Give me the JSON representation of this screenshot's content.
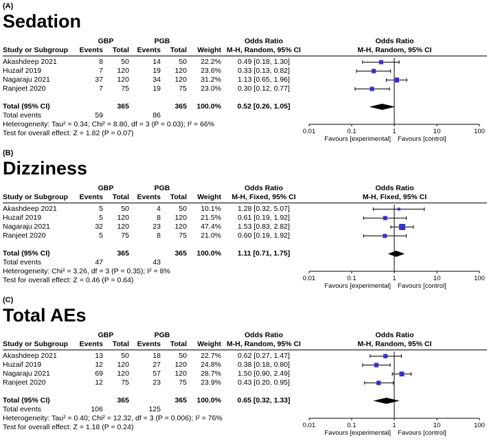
{
  "figure": {
    "shared": {
      "group1": "GBP",
      "group2": "PGB",
      "col_study": "Study or Subgroup",
      "col_events": "Events",
      "col_total": "Total",
      "col_weight": "Weight",
      "or_header": "Odds Ratio",
      "axis_ticks": [
        "0.01",
        "0.1",
        "1",
        "10",
        "100"
      ],
      "favours_left": "Favours [experimental]",
      "favours_right": "Favours [control]"
    },
    "colors": {
      "marker": "#3333cc",
      "diamond": "#000000",
      "line": "#000000"
    },
    "panels": [
      {
        "label": "(A)",
        "title": "Sedation",
        "effect_header": "M-H, Random, 95% CI",
        "rows": [
          {
            "study": "Akashdeep 2021",
            "gbp_events": "8",
            "gbp_total": "50",
            "pgb_events": "14",
            "pgb_total": "50",
            "weight": "22.2%",
            "ci_text": "0.49 [0.18, 1.30]",
            "or": 0.49,
            "low": 0.18,
            "high": 1.3,
            "weight_pct": 22.2
          },
          {
            "study": "Huzaif 2019",
            "gbp_events": "7",
            "gbp_total": "120",
            "pgb_events": "19",
            "pgb_total": "120",
            "weight": "23.6%",
            "ci_text": "0.33 [0.13, 0.82]",
            "or": 0.33,
            "low": 0.13,
            "high": 0.82,
            "weight_pct": 23.6
          },
          {
            "study": "Nagaraju 2021",
            "gbp_events": "37",
            "gbp_total": "120",
            "pgb_events": "34",
            "pgb_total": "120",
            "weight": "31.2%",
            "ci_text": "1.13 [0.65, 1.96]",
            "or": 1.13,
            "low": 0.65,
            "high": 1.96,
            "weight_pct": 31.2
          },
          {
            "study": "Ranjeet 2020",
            "gbp_events": "7",
            "gbp_total": "75",
            "pgb_events": "19",
            "pgb_total": "75",
            "weight": "23.0%",
            "ci_text": "0.30 [0.12, 0.77]",
            "or": 0.3,
            "low": 0.12,
            "high": 0.77,
            "weight_pct": 23.0
          }
        ],
        "total": {
          "label": "Total (95% CI)",
          "gbp_total": "365",
          "pgb_total": "365",
          "weight": "100.0%",
          "ci_text": "0.52 [0.26, 1.05]",
          "or": 0.52,
          "low": 0.26,
          "high": 1.05
        },
        "total_events": {
          "label": "Total events",
          "gbp": "59",
          "pgb": "86"
        },
        "heterogeneity": "Heterogeneity: Tau² = 0.34; Chi² = 8.80, df = 3 (P = 0.03); I² = 66%",
        "overall": "Test for overall effect: Z = 1.82 (P = 0.07)"
      },
      {
        "label": "(B)",
        "title": "Dizziness",
        "effect_header": "M-H, Fixed, 95% CI",
        "rows": [
          {
            "study": "Akashdeep 2021",
            "gbp_events": "5",
            "gbp_total": "50",
            "pgb_events": "4",
            "pgb_total": "50",
            "weight": "10.1%",
            "ci_text": "1.28 [0.32, 5.07]",
            "or": 1.28,
            "low": 0.32,
            "high": 5.07,
            "weight_pct": 10.1
          },
          {
            "study": "Huzaif 2019",
            "gbp_events": "5",
            "gbp_total": "120",
            "pgb_events": "8",
            "pgb_total": "120",
            "weight": "21.5%",
            "ci_text": "0.61 [0.19, 1.92]",
            "or": 0.61,
            "low": 0.19,
            "high": 1.92,
            "weight_pct": 21.5
          },
          {
            "study": "Nagaraju 2021",
            "gbp_events": "32",
            "gbp_total": "120",
            "pgb_events": "23",
            "pgb_total": "120",
            "weight": "47.4%",
            "ci_text": "1.53 [0.83, 2.82]",
            "or": 1.53,
            "low": 0.83,
            "high": 2.82,
            "weight_pct": 47.4
          },
          {
            "study": "Ranjeet 2020",
            "gbp_events": "5",
            "gbp_total": "75",
            "pgb_events": "8",
            "pgb_total": "75",
            "weight": "21.0%",
            "ci_text": "0.60 [0.19, 1.92]",
            "or": 0.6,
            "low": 0.19,
            "high": 1.92,
            "weight_pct": 21.0
          }
        ],
        "total": {
          "label": "Total (95% CI)",
          "gbp_total": "365",
          "pgb_total": "365",
          "weight": "100.0%",
          "ci_text": "1.11 [0.71, 1.75]",
          "or": 1.11,
          "low": 0.71,
          "high": 1.75
        },
        "total_events": {
          "label": "Total events",
          "gbp": "47",
          "pgb": "43"
        },
        "heterogeneity": "Heterogeneity: Chi² = 3.26, df = 3 (P = 0.35); I² = 8%",
        "overall": "Test for overall effect: Z = 0.46 (P = 0.64)"
      },
      {
        "label": "(C)",
        "title": "Total AEs",
        "effect_header": "M-H, Random, 95% CI",
        "rows": [
          {
            "study": "Akashdeep 2021",
            "gbp_events": "13",
            "gbp_total": "50",
            "pgb_events": "18",
            "pgb_total": "50",
            "weight": "22.7%",
            "ci_text": "0.62 [0.27, 1.47]",
            "or": 0.62,
            "low": 0.27,
            "high": 1.47,
            "weight_pct": 22.7
          },
          {
            "study": "Huzaif 2019",
            "gbp_events": "12",
            "gbp_total": "120",
            "pgb_events": "27",
            "pgb_total": "120",
            "weight": "24.8%",
            "ci_text": "0.38 [0.18, 0.80]",
            "or": 0.38,
            "low": 0.18,
            "high": 0.8,
            "weight_pct": 24.8
          },
          {
            "study": "Nagaraju 2021",
            "gbp_events": "69",
            "gbp_total": "120",
            "pgb_events": "57",
            "pgb_total": "120",
            "weight": "28.7%",
            "ci_text": "1.50 [0.90, 2.49]",
            "or": 1.5,
            "low": 0.9,
            "high": 2.49,
            "weight_pct": 28.7
          },
          {
            "study": "Ranjeet 2020",
            "gbp_events": "12",
            "gbp_total": "75",
            "pgb_events": "23",
            "pgb_total": "75",
            "weight": "23.9%",
            "ci_text": "0.43 [0.20, 0.95]",
            "or": 0.43,
            "low": 0.2,
            "high": 0.95,
            "weight_pct": 23.9
          }
        ],
        "total": {
          "label": "Total (95% CI)",
          "gbp_total": "365",
          "pgb_total": "365",
          "weight": "100.0%",
          "ci_text": "0.65 [0.32, 1.33]",
          "or": 0.65,
          "low": 0.32,
          "high": 1.33
        },
        "total_events": {
          "label": "Total events",
          "gbp": "106",
          "pgb": "125"
        },
        "heterogeneity": "Heterogeneity: Tau² = 0.40; Chi² = 12.32, df = 3 (P = 0.006); I² = 76%",
        "overall": "Test for overall effect: Z = 1.18 (P = 0.24)"
      }
    ]
  },
  "chart_data": [
    {
      "type": "forest",
      "title": "Sedation",
      "effect_measure": "Odds Ratio, M-H, Random, 95% CI",
      "x_scale": "log",
      "x_ticks": [
        0.01,
        0.1,
        1,
        10,
        100
      ],
      "legend_left": "Favours [experimental]",
      "legend_right": "Favours [control]",
      "studies": [
        {
          "name": "Akashdeep 2021",
          "gbp_events": 8,
          "gbp_total": 50,
          "pgb_events": 14,
          "pgb_total": 50,
          "weight_pct": 22.2,
          "or": 0.49,
          "ci": [
            0.18,
            1.3
          ]
        },
        {
          "name": "Huzaif 2019",
          "gbp_events": 7,
          "gbp_total": 120,
          "pgb_events": 19,
          "pgb_total": 120,
          "weight_pct": 23.6,
          "or": 0.33,
          "ci": [
            0.13,
            0.82
          ]
        },
        {
          "name": "Nagaraju 2021",
          "gbp_events": 37,
          "gbp_total": 120,
          "pgb_events": 34,
          "pgb_total": 120,
          "weight_pct": 31.2,
          "or": 1.13,
          "ci": [
            0.65,
            1.96
          ]
        },
        {
          "name": "Ranjeet 2020",
          "gbp_events": 7,
          "gbp_total": 75,
          "pgb_events": 19,
          "pgb_total": 75,
          "weight_pct": 23.0,
          "or": 0.3,
          "ci": [
            0.12,
            0.77
          ]
        }
      ],
      "total": {
        "gbp_total": 365,
        "pgb_total": 365,
        "gbp_events": 59,
        "pgb_events": 86,
        "weight_pct": 100.0,
        "or": 0.52,
        "ci": [
          0.26,
          1.05
        ]
      },
      "heterogeneity": "Tau² = 0.34; Chi² = 8.80, df = 3 (P = 0.03); I² = 66%",
      "overall_effect": "Z = 1.82 (P = 0.07)"
    },
    {
      "type": "forest",
      "title": "Dizziness",
      "effect_measure": "Odds Ratio, M-H, Fixed, 95% CI",
      "x_scale": "log",
      "x_ticks": [
        0.01,
        0.1,
        1,
        10,
        100
      ],
      "legend_left": "Favours [experimental]",
      "legend_right": "Favours [control]",
      "studies": [
        {
          "name": "Akashdeep 2021",
          "gbp_events": 5,
          "gbp_total": 50,
          "pgb_events": 4,
          "pgb_total": 50,
          "weight_pct": 10.1,
          "or": 1.28,
          "ci": [
            0.32,
            5.07
          ]
        },
        {
          "name": "Huzaif 2019",
          "gbp_events": 5,
          "gbp_total": 120,
          "pgb_events": 8,
          "pgb_total": 120,
          "weight_pct": 21.5,
          "or": 0.61,
          "ci": [
            0.19,
            1.92
          ]
        },
        {
          "name": "Nagaraju 2021",
          "gbp_events": 32,
          "gbp_total": 120,
          "pgb_events": 23,
          "pgb_total": 120,
          "weight_pct": 47.4,
          "or": 1.53,
          "ci": [
            0.83,
            2.82
          ]
        },
        {
          "name": "Ranjeet 2020",
          "gbp_events": 5,
          "gbp_total": 75,
          "pgb_events": 8,
          "pgb_total": 75,
          "weight_pct": 21.0,
          "or": 0.6,
          "ci": [
            0.19,
            1.92
          ]
        }
      ],
      "total": {
        "gbp_total": 365,
        "pgb_total": 365,
        "gbp_events": 47,
        "pgb_events": 43,
        "weight_pct": 100.0,
        "or": 1.11,
        "ci": [
          0.71,
          1.75
        ]
      },
      "heterogeneity": "Chi² = 3.26, df = 3 (P = 0.35); I² = 8%",
      "overall_effect": "Z = 0.46 (P = 0.64)"
    },
    {
      "type": "forest",
      "title": "Total AEs",
      "effect_measure": "Odds Ratio, M-H, Random, 95% CI",
      "x_scale": "log",
      "x_ticks": [
        0.01,
        0.1,
        1,
        10,
        100
      ],
      "legend_left": "Favours [experimental]",
      "legend_right": "Favours [control]",
      "studies": [
        {
          "name": "Akashdeep 2021",
          "gbp_events": 13,
          "gbp_total": 50,
          "pgb_events": 18,
          "pgb_total": 50,
          "weight_pct": 22.7,
          "or": 0.62,
          "ci": [
            0.27,
            1.47
          ]
        },
        {
          "name": "Huzaif 2019",
          "gbp_events": 12,
          "gbp_total": 120,
          "pgb_events": 27,
          "pgb_total": 120,
          "weight_pct": 24.8,
          "or": 0.38,
          "ci": [
            0.18,
            0.8
          ]
        },
        {
          "name": "Nagaraju 2021",
          "gbp_events": 69,
          "gbp_total": 120,
          "pgb_events": 57,
          "pgb_total": 120,
          "weight_pct": 28.7,
          "or": 1.5,
          "ci": [
            0.9,
            2.49
          ]
        },
        {
          "name": "Ranjeet 2020",
          "gbp_events": 12,
          "gbp_total": 75,
          "pgb_events": 23,
          "pgb_total": 75,
          "weight_pct": 23.9,
          "or": 0.43,
          "ci": [
            0.2,
            0.95
          ]
        }
      ],
      "total": {
        "gbp_total": 365,
        "pgb_total": 365,
        "gbp_events": 106,
        "pgb_events": 125,
        "weight_pct": 100.0,
        "or": 0.65,
        "ci": [
          0.32,
          1.33
        ]
      },
      "heterogeneity": "Tau² = 0.40; Chi² = 12.32, df = 3 (P = 0.006); I² = 76%",
      "overall_effect": "Z = 1.18 (P = 0.24)"
    }
  ]
}
